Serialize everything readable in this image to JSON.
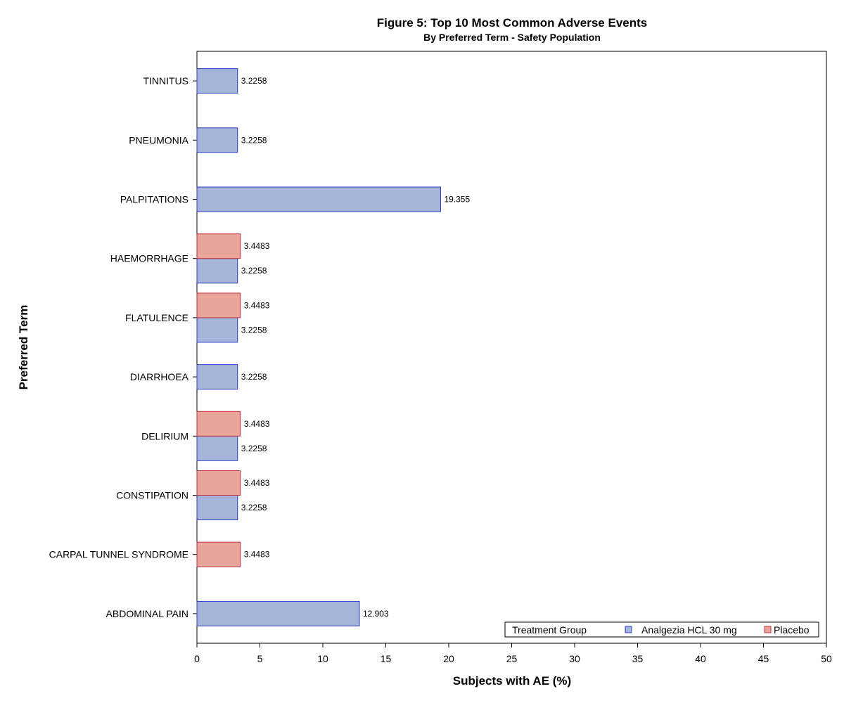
{
  "colors": {
    "analgezia_fill": "#a5b5d9",
    "analgezia_stroke": "#2b3cc4",
    "placebo_fill": "#e8a59a",
    "placebo_stroke": "#c0313c"
  },
  "chart_data": {
    "type": "bar",
    "orientation": "horizontal",
    "title": "Figure 5: Top 10 Most Common Adverse Events",
    "subtitle": "By Preferred Term - Safety Population",
    "xlabel": "Subjects with AE (%)",
    "ylabel": "Preferred Term",
    "xlim": [
      0,
      50
    ],
    "xticks": [
      0,
      5,
      10,
      15,
      20,
      25,
      30,
      35,
      40,
      45,
      50
    ],
    "grid": false,
    "categories": [
      "TINNITUS",
      "PNEUMONIA",
      "PALPITATIONS",
      "HAEMORRHAGE",
      "FLATULENCE",
      "DIARRHOEA",
      "DELIRIUM",
      "CONSTIPATION",
      "CARPAL TUNNEL SYNDROME",
      "ABDOMINAL PAIN"
    ],
    "series": [
      {
        "name": "Analgezia HCL 30 mg",
        "values": [
          3.2258,
          3.2258,
          19.355,
          3.2258,
          3.2258,
          3.2258,
          3.2258,
          3.2258,
          null,
          12.903
        ],
        "labels": [
          "3.2258",
          "3.2258",
          "19.355",
          "3.2258",
          "3.2258",
          "3.2258",
          "3.2258",
          "3.2258",
          null,
          "12.903"
        ]
      },
      {
        "name": "Placebo",
        "values": [
          null,
          null,
          null,
          3.4483,
          3.4483,
          null,
          3.4483,
          3.4483,
          3.4483,
          null
        ],
        "labels": [
          null,
          null,
          null,
          "3.4483",
          "3.4483",
          null,
          "3.4483",
          "3.4483",
          "3.4483",
          null
        ]
      }
    ],
    "legend": {
      "title": "Treatment Group",
      "placement": "bottom-right inside plot"
    }
  }
}
